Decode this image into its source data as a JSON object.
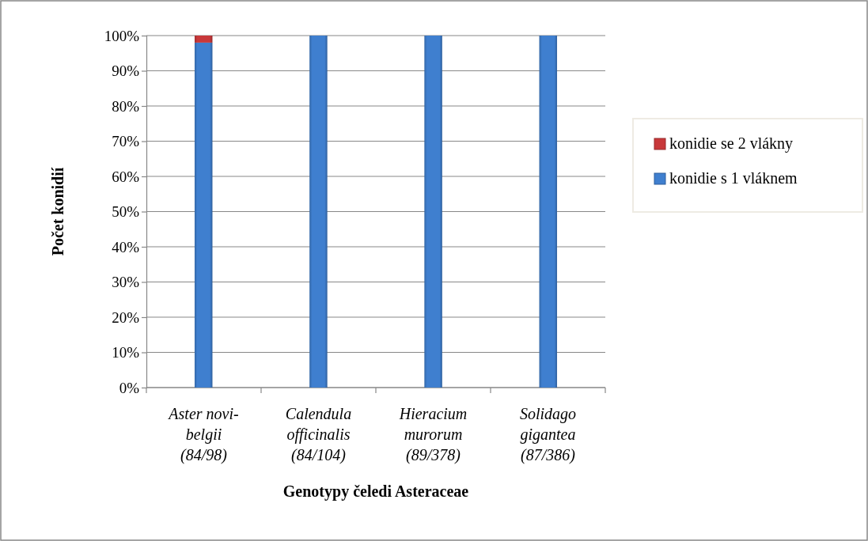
{
  "chart_data": {
    "type": "bar",
    "stacked": true,
    "categories": [
      "Aster novi-\nbelgii\n(84/98)",
      "Calendula\nofficinalis\n(84/104)",
      "Hieracium\nmurorum\n(89/378)",
      "Solidago\ngigantea\n(87/386)"
    ],
    "series": [
      {
        "name": "konidie s 1 vláknem",
        "color": "#3f7fcf",
        "values": [
          98,
          100,
          100,
          100
        ]
      },
      {
        "name": "konidie se 2 vlákny",
        "color": "#c8383a",
        "values": [
          2,
          0,
          0,
          0
        ]
      }
    ],
    "ylim": [
      0,
      100
    ],
    "yticks": [
      {
        "value": 0,
        "label": "0%"
      },
      {
        "value": 10,
        "label": "10%"
      },
      {
        "value": 20,
        "label": "20%"
      },
      {
        "value": 30,
        "label": "30%"
      },
      {
        "value": 40,
        "label": "40%"
      },
      {
        "value": 50,
        "label": "50%"
      },
      {
        "value": 60,
        "label": "60%"
      },
      {
        "value": 70,
        "label": "70%"
      },
      {
        "value": 80,
        "label": "80%"
      },
      {
        "value": 90,
        "label": "90%"
      },
      {
        "value": 100,
        "label": "100%"
      }
    ],
    "ylabel": "Počet konidií",
    "xlabel": "Genotypy čeledi Asteraceae",
    "grid": "y",
    "legend": "right"
  }
}
